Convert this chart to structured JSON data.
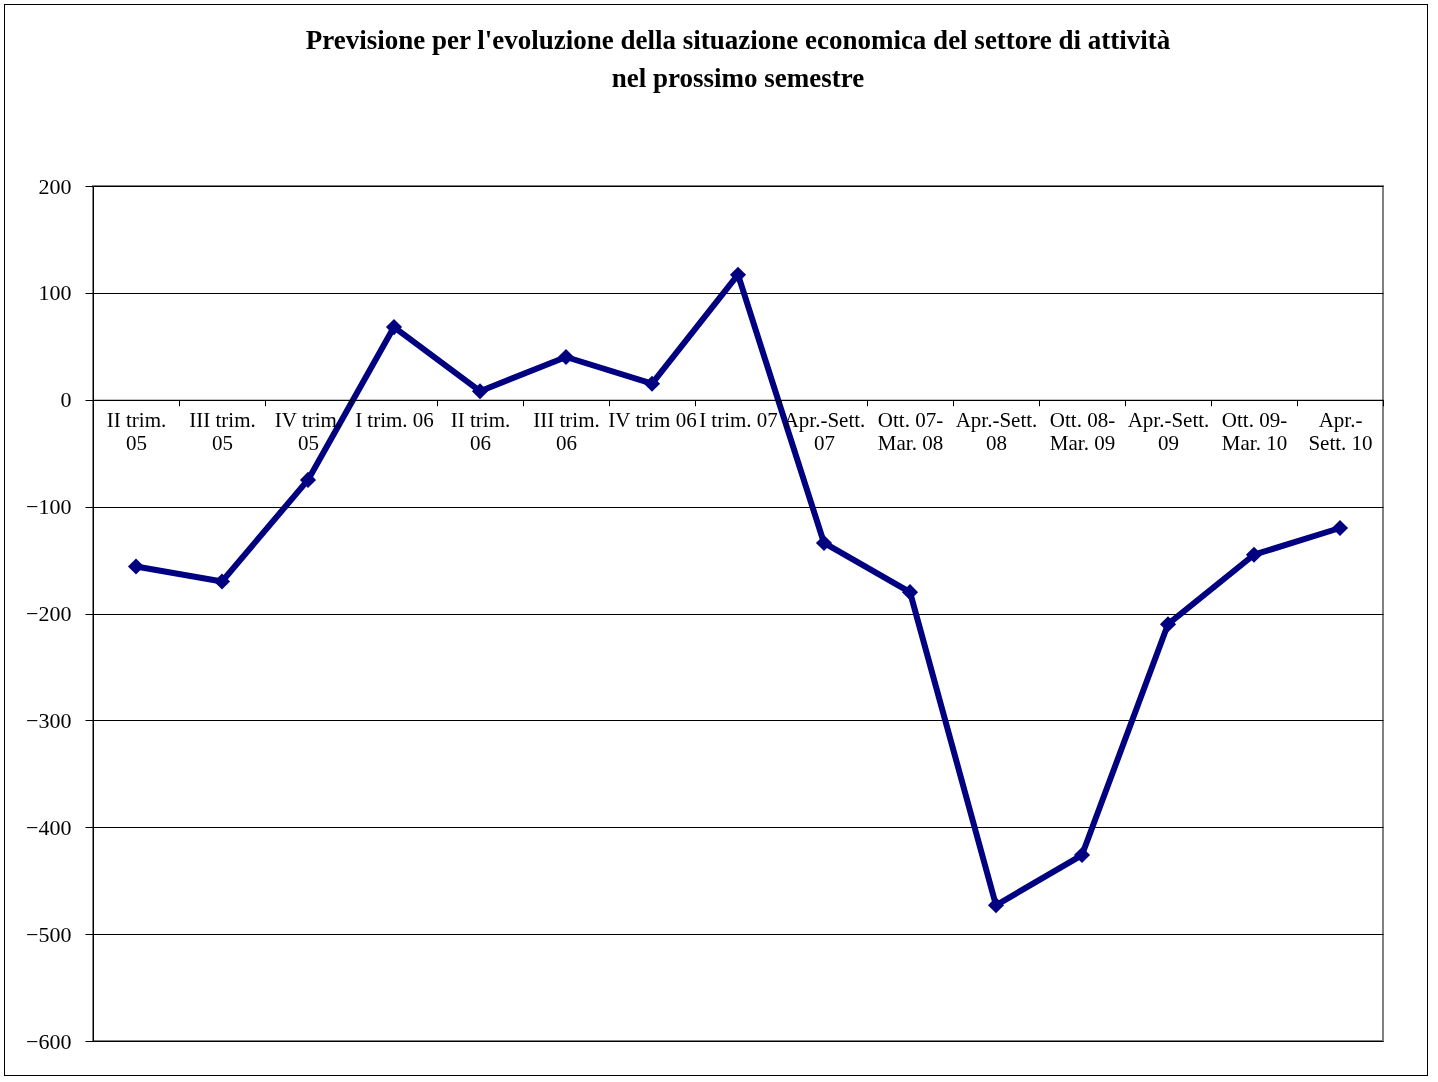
{
  "chart_data": {
    "type": "line",
    "title": "Previsione per l'evoluzione della situazione economica del settore di attività nel prossimo semestre",
    "categories": [
      "II trim. 05",
      "III trim. 05",
      "IV trim. 05",
      "I trim. 06",
      "II trim. 06",
      "III trim. 06",
      "IV trim 06",
      "I trim. 07",
      "Apr.-Sett. 07",
      "Ott. 07- Mar. 08",
      "Apr.-Sett. 08",
      "Ott. 08- Mar. 09",
      "Apr.-Sett. 09",
      "Ott. 09- Mar. 10",
      "Apr.- Sett. 10"
    ],
    "series": [
      {
        "color": "#000080",
        "values": [
          -156,
          -170,
          -75,
          68,
          8,
          40,
          15,
          117,
          -134,
          -180,
          -473,
          -426,
          -210,
          -145,
          -120
        ]
      }
    ],
    "ylim": [
      -600,
      200
    ],
    "yticks": [
      -600,
      -500,
      -400,
      -300,
      -200,
      -100,
      0,
      100,
      200
    ],
    "grid": "y",
    "legend": false,
    "marker": "diamond",
    "line_style": "solid"
  }
}
